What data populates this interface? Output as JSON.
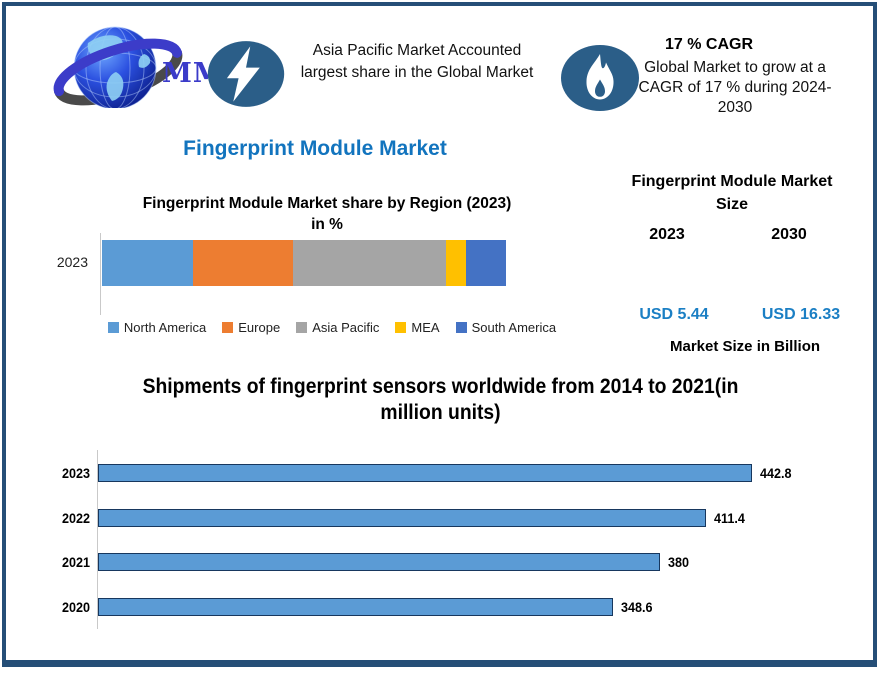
{
  "frame": {
    "border_color": "#254E77",
    "background": "#FFFFFF"
  },
  "header": {
    "logo": {
      "text": "MMR",
      "text_color": "#3B3BC9",
      "icon": "globe-icon"
    },
    "highlight_left": {
      "icon": "lightning-icon",
      "icon_bg": "#2B5E88",
      "text": "Asia Pacific Market Accounted largest share in the Global Market"
    },
    "highlight_right": {
      "icon": "flame-icon",
      "icon_bg": "#2B5E88",
      "title": "17 % CAGR",
      "text": "Global Market to grow at a CAGR of 17 % during 2024-2030"
    }
  },
  "page_title": {
    "text": "Fingerprint Module Market",
    "color": "#1274BE"
  },
  "market_size_panel": {
    "title": "Fingerprint Module Market Size",
    "years": [
      "2023",
      "2030"
    ],
    "values": [
      "USD 5.44",
      "USD 16.33"
    ],
    "value_color": "#1B7FC4",
    "footnote": "Market Size in Billion"
  },
  "chart_data": [
    {
      "type": "bar",
      "orientation": "horizontal-stacked",
      "title": "Fingerprint Module Market share by Region (2023)",
      "subtitle": "in %",
      "categories": [
        "2023"
      ],
      "series": [
        {
          "name": "North America",
          "values": [
            22.5
          ],
          "color": "#5B9BD5"
        },
        {
          "name": "Europe",
          "values": [
            24.8
          ],
          "color": "#ED7D31"
        },
        {
          "name": "Asia Pacific",
          "values": [
            37.9
          ],
          "color": "#A5A5A5"
        },
        {
          "name": "MEA",
          "values": [
            5.0
          ],
          "color": "#FFC000"
        },
        {
          "name": "South America",
          "values": [
            9.8
          ],
          "color": "#4472C4"
        }
      ],
      "xlim": [
        0,
        100
      ],
      "legend_position": "bottom",
      "grid": false
    },
    {
      "type": "bar",
      "orientation": "horizontal",
      "title_line1": "Shipments of fingerprint sensors worldwide from 2014 to 2021(in",
      "title_line2": "million units)",
      "categories": [
        "2023",
        "2022",
        "2021",
        "2020"
      ],
      "values": [
        442.8,
        411.4,
        380,
        348.6
      ],
      "data_labels": [
        "442.8",
        "411.4",
        "380",
        "348.6"
      ],
      "bar_color": "#5B9BD5",
      "bar_border_color": "#17375E",
      "xlim": [
        0,
        450
      ],
      "grid": false
    }
  ]
}
